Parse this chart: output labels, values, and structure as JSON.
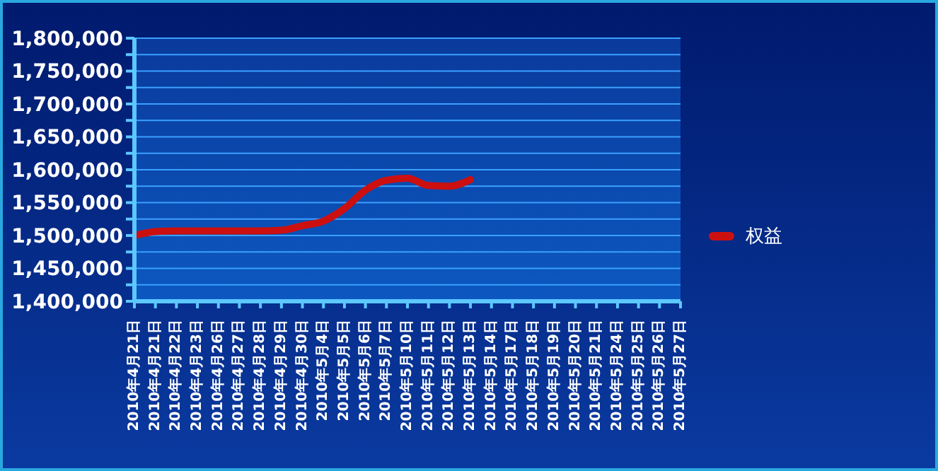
{
  "chart_data": {
    "type": "line",
    "categories": [
      "2010年4月21日",
      "2010年4月21日",
      "2010年4月22日",
      "2010年4月23日",
      "2010年4月26日",
      "2010年4月27日",
      "2010年4月28日",
      "2010年4月29日",
      "2010年4月30日",
      "2010年5月4日",
      "2010年5月5日",
      "2010年5月6日",
      "2010年5月7日",
      "2010年5月10日",
      "2010年5月11日",
      "2010年5月12日",
      "2010年5月13日",
      "2010年5月14日",
      "2010年5月17日",
      "2010年5月18日",
      "2010年5月19日",
      "2010年5月20日",
      "2010年5月21日",
      "2010年5月24日",
      "2010年5月25日",
      "2010年5月26日",
      "2010年5月27日"
    ],
    "series": [
      {
        "name": "权益",
        "color": "#cc1010",
        "values": [
          1500000,
          1506000,
          1507000,
          1507000,
          1507000,
          1507000,
          1507000,
          1508000,
          1515000,
          1522000,
          1541000,
          1569000,
          1584000,
          1587000,
          1576000,
          1575000,
          1585000,
          null,
          null,
          null,
          null,
          null,
          null,
          null,
          null,
          null,
          null
        ]
      }
    ],
    "ylim": [
      1400000,
      1800000
    ],
    "yticks": [
      {
        "value": 1400000,
        "label": "1,400,000"
      },
      {
        "value": 1425000,
        "label": null
      },
      {
        "value": 1450000,
        "label": "1,450,000"
      },
      {
        "value": 1475000,
        "label": null
      },
      {
        "value": 1500000,
        "label": "1,500,000"
      },
      {
        "value": 1525000,
        "label": null
      },
      {
        "value": 1550000,
        "label": "1,550,000"
      },
      {
        "value": 1575000,
        "label": null
      },
      {
        "value": 1600000,
        "label": "1,600,000"
      },
      {
        "value": 1625000,
        "label": null
      },
      {
        "value": 1650000,
        "label": "1,650,000"
      },
      {
        "value": 1675000,
        "label": null
      },
      {
        "value": 1700000,
        "label": "1,700,000"
      },
      {
        "value": 1725000,
        "label": null
      },
      {
        "value": 1750000,
        "label": "1,750,000"
      },
      {
        "value": 1775000,
        "label": null
      },
      {
        "value": 1800000,
        "label": "1,800,000"
      }
    ],
    "grid": "y",
    "legend": "right",
    "marker": "none",
    "line_style": "solid"
  }
}
